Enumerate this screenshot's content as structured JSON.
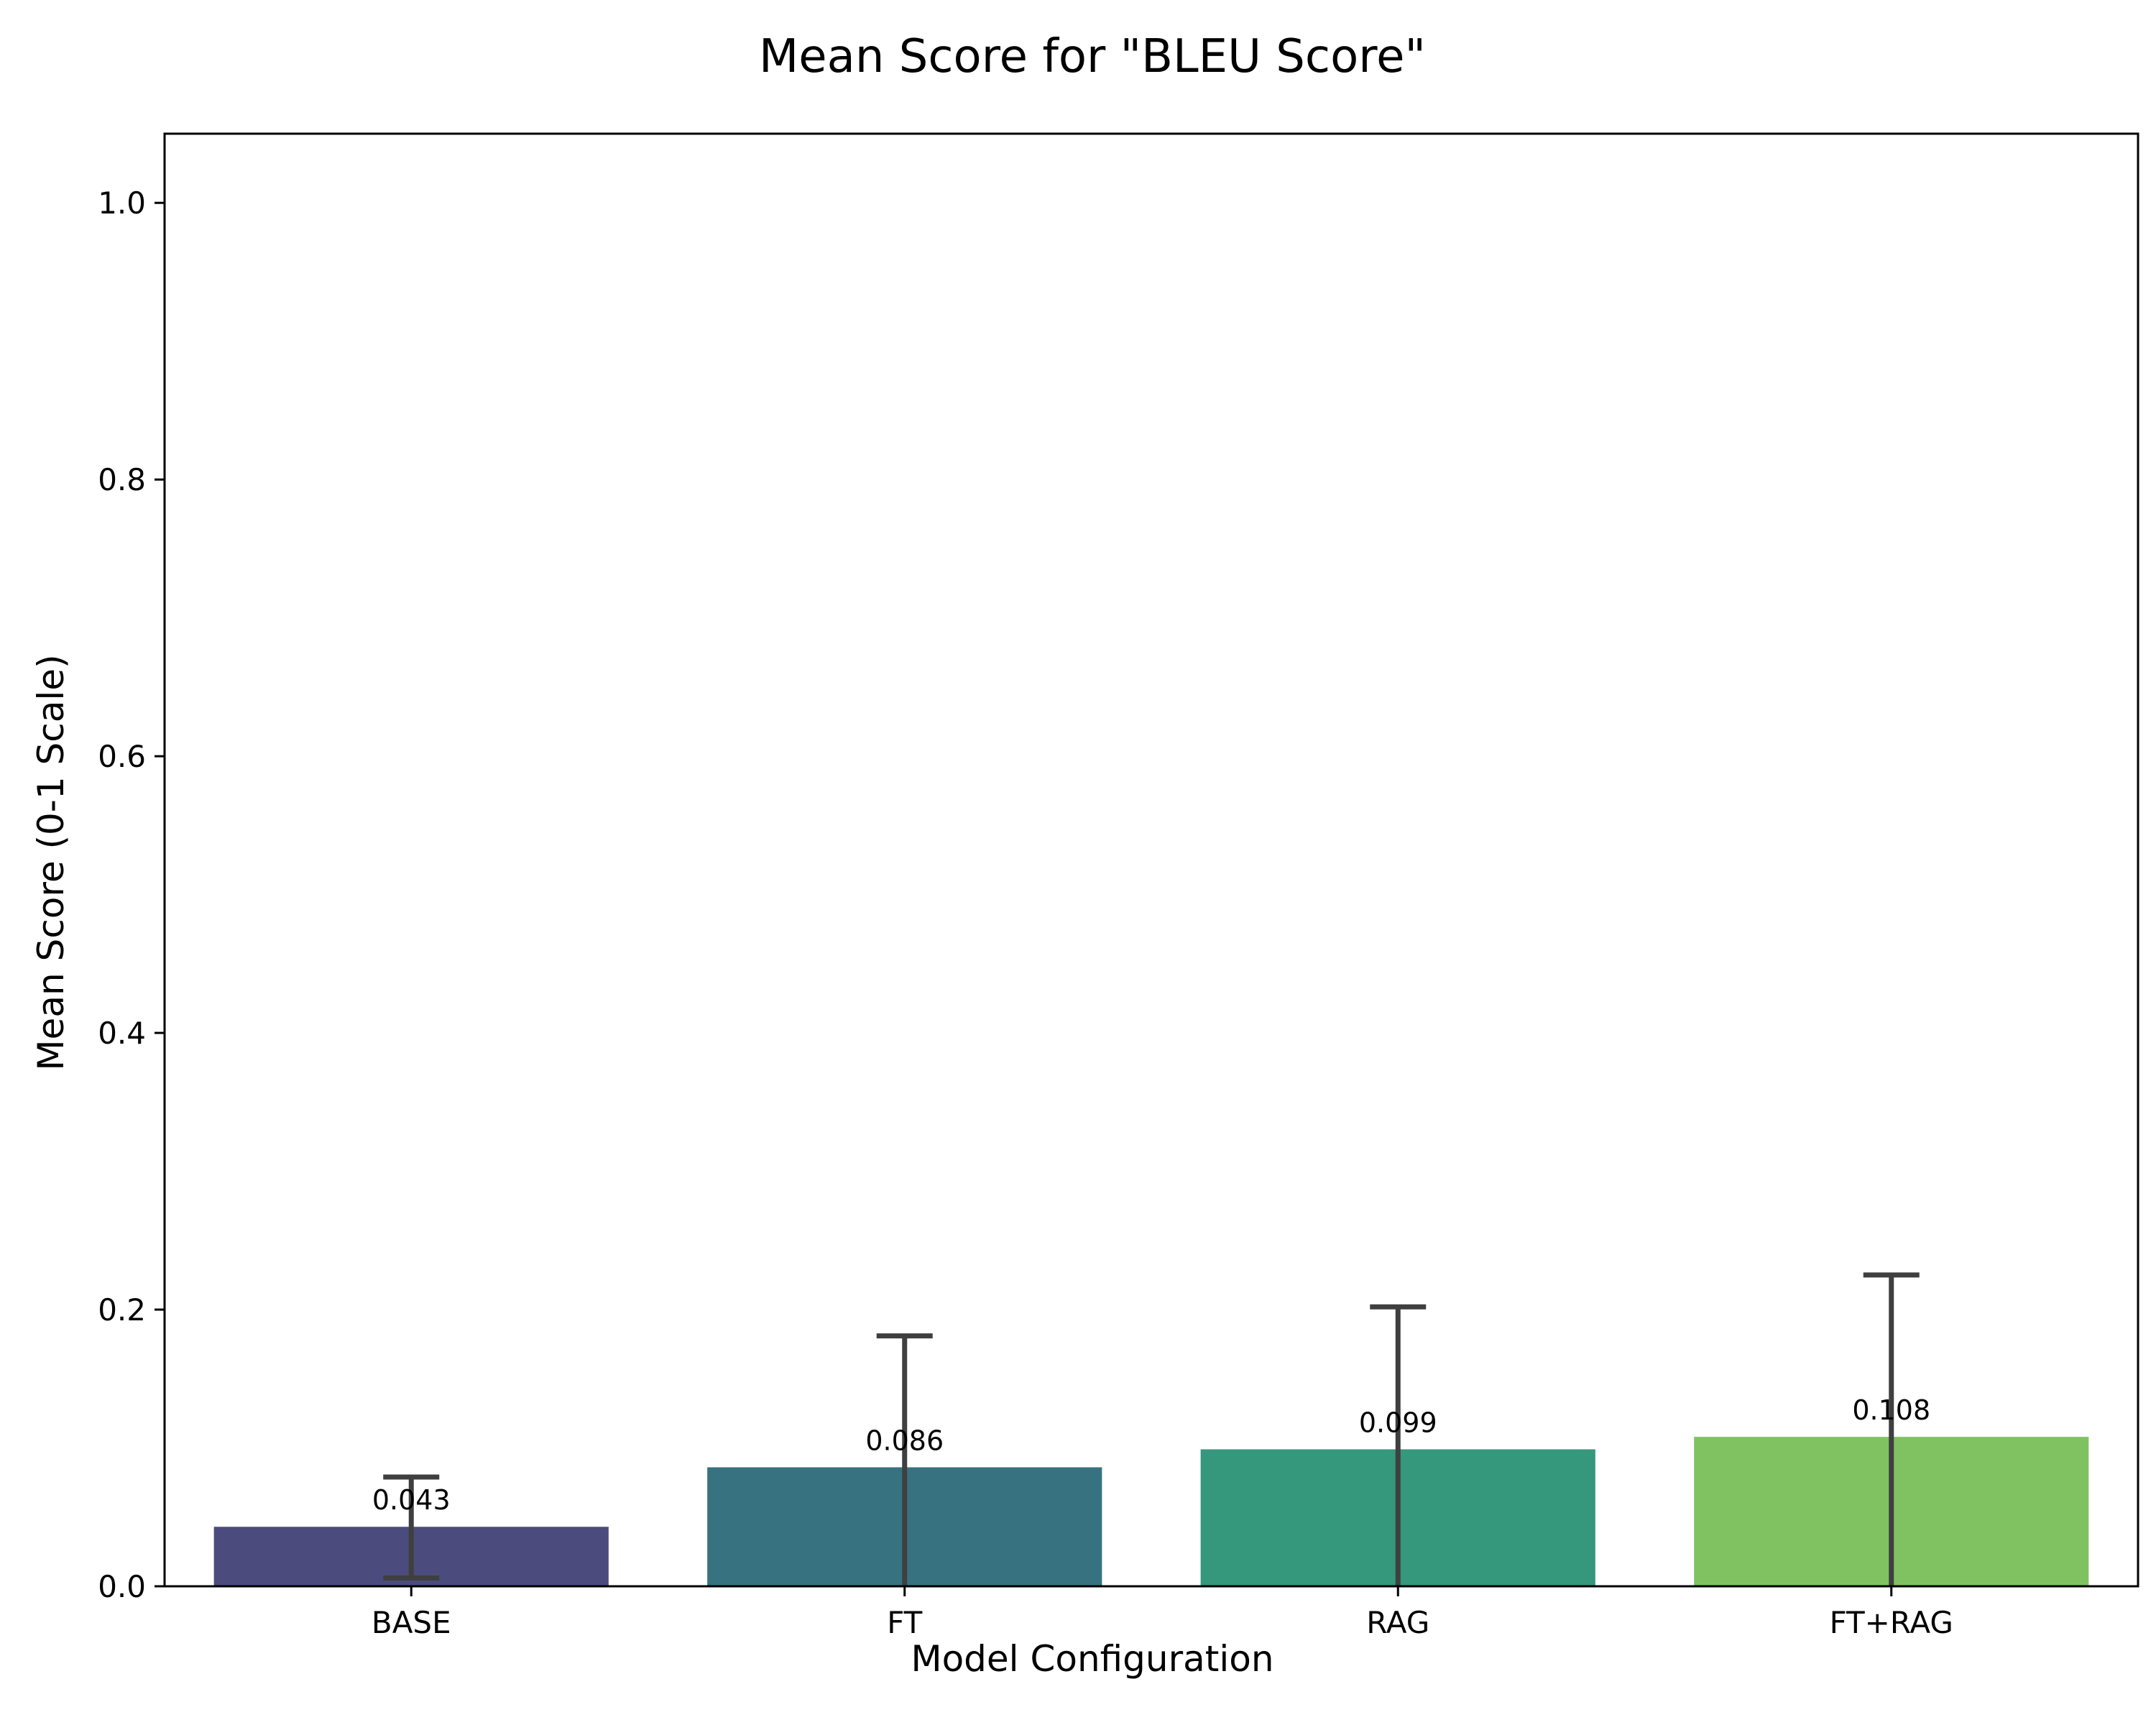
{
  "chart_data": {
    "type": "bar",
    "title": "Mean Score for \"BLEU Score\"",
    "xlabel": "Model Configuration",
    "ylabel": "Mean Score (0-1 Scale)",
    "categories": [
      "BASE",
      "FT",
      "RAG",
      "FT+RAG"
    ],
    "values": [
      0.043,
      0.086,
      0.099,
      0.108
    ],
    "value_labels": [
      "0.043",
      "0.086",
      "0.099",
      "0.108"
    ],
    "error_bars": [
      {
        "low": 0.006,
        "high": 0.079
      },
      {
        "low": 0.0,
        "high": 0.181
      },
      {
        "low": 0.0,
        "high": 0.202
      },
      {
        "low": 0.0,
        "high": 0.225
      }
    ],
    "colors": [
      "#4b4c7d",
      "#377281",
      "#35977c",
      "#80c262"
    ],
    "error_color": "#3f3f3f",
    "ylim": [
      0,
      1.05
    ],
    "yticks": [
      0.0,
      0.2,
      0.4,
      0.6,
      0.8,
      1.0
    ],
    "ytick_labels": [
      "0.0",
      "0.2",
      "0.4",
      "0.6",
      "0.8",
      "1.0"
    ],
    "grid": false,
    "legend": "none"
  }
}
